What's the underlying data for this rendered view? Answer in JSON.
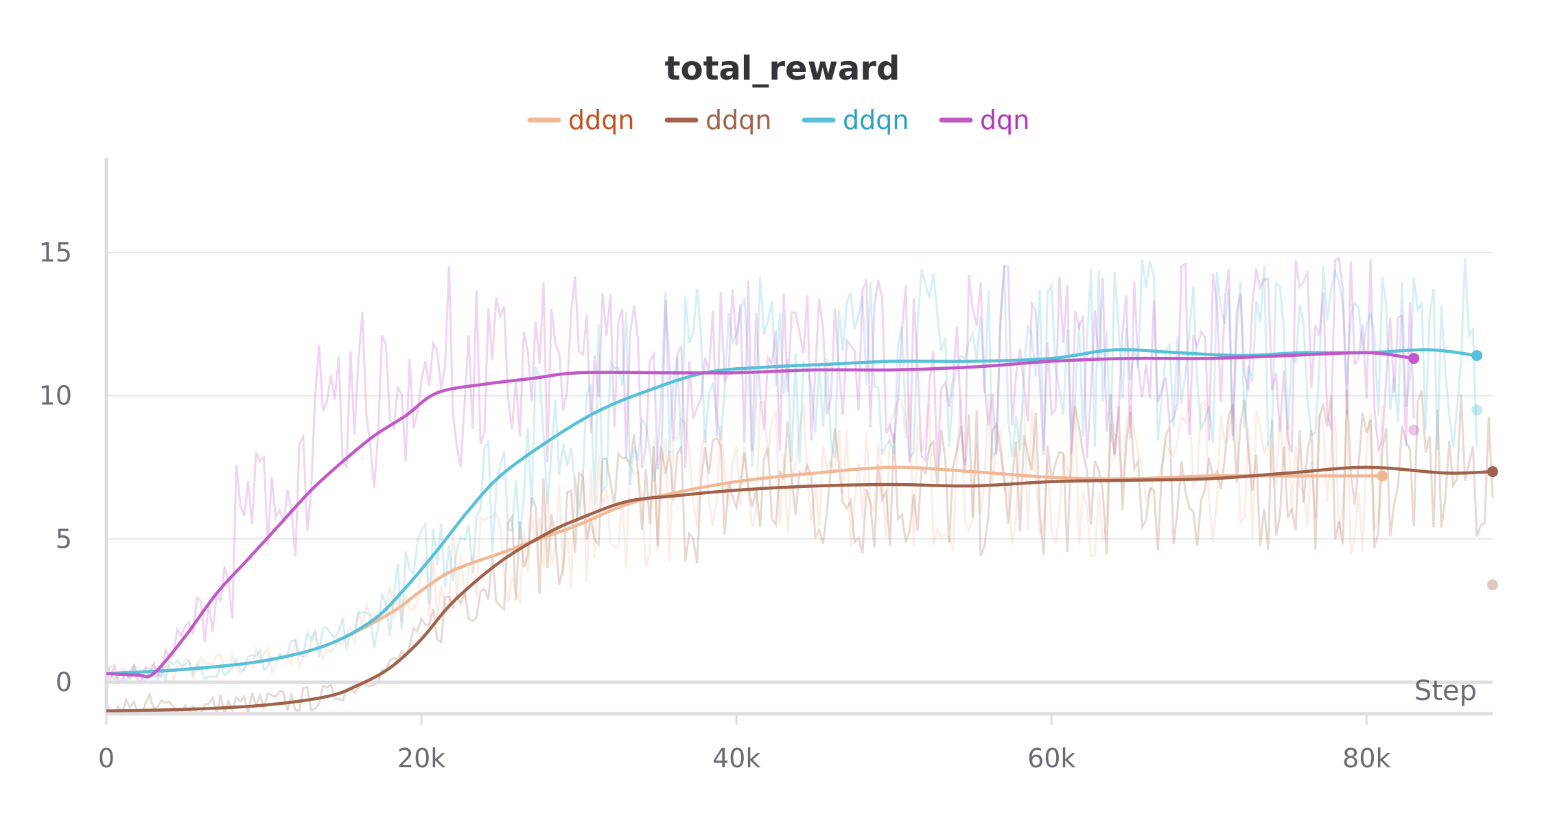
{
  "chart_data": {
    "type": "line",
    "title": "total_reward",
    "xlabel": "Step",
    "ylabel": "",
    "xlim": [
      0,
      88000
    ],
    "ylim": [
      -1.1,
      18.3
    ],
    "x_ticks": [
      {
        "value": 0,
        "label": "0"
      },
      {
        "value": 20000,
        "label": "20k"
      },
      {
        "value": 40000,
        "label": "40k"
      },
      {
        "value": 60000,
        "label": "60k"
      },
      {
        "value": 80000,
        "label": "80k"
      }
    ],
    "y_ticks": [
      {
        "value": 0,
        "label": "0"
      },
      {
        "value": 5,
        "label": "5"
      },
      {
        "value": 10,
        "label": "10"
      },
      {
        "value": 15,
        "label": "15"
      }
    ],
    "grid": true,
    "legend_position": "top-center",
    "series": [
      {
        "name": "ddqn",
        "color": "#f2b896",
        "legend_text_color": "#c0521e",
        "x": [
          0,
          5000,
          10000,
          14000,
          18000,
          20000,
          22000,
          25000,
          28000,
          30000,
          33000,
          36000,
          40000,
          45000,
          50000,
          55000,
          60000,
          65000,
          70000,
          75000,
          81000
        ],
        "y": [
          0.3,
          0.45,
          0.75,
          1.3,
          2.4,
          3.2,
          3.9,
          4.5,
          5.1,
          5.5,
          6.2,
          6.6,
          7.0,
          7.3,
          7.5,
          7.35,
          7.15,
          7.1,
          7.2,
          7.2,
          7.2
        ],
        "end_raw": 7.2
      },
      {
        "name": "ddqn",
        "color": "#a0624a",
        "legend_text_color": "#a0624a",
        "x": [
          0,
          5000,
          10000,
          14000,
          16000,
          18000,
          20000,
          22000,
          25000,
          28000,
          30000,
          33000,
          36000,
          40000,
          45000,
          50000,
          55000,
          60000,
          65000,
          70000,
          75000,
          80000,
          85000,
          88000
        ],
        "y": [
          -1.0,
          -0.95,
          -0.8,
          -0.5,
          -0.1,
          0.5,
          1.5,
          2.8,
          4.2,
          5.2,
          5.7,
          6.3,
          6.5,
          6.7,
          6.85,
          6.9,
          6.85,
          7.0,
          7.05,
          7.1,
          7.3,
          7.5,
          7.3,
          7.35
        ],
        "end_raw": 3.4
      },
      {
        "name": "ddqn",
        "color": "#56c0d8",
        "legend_text_color": "#27a3c0",
        "x": [
          0,
          5000,
          10000,
          14000,
          17000,
          19000,
          21000,
          23000,
          25000,
          28000,
          31000,
          34000,
          38000,
          42000,
          46000,
          50000,
          55000,
          60000,
          64000,
          68000,
          72000,
          76000,
          80000,
          84000,
          87000
        ],
        "y": [
          0.3,
          0.45,
          0.75,
          1.3,
          2.2,
          3.3,
          4.6,
          6.0,
          7.2,
          8.4,
          9.4,
          10.1,
          10.8,
          11.0,
          11.1,
          11.2,
          11.2,
          11.3,
          11.6,
          11.5,
          11.4,
          11.5,
          11.5,
          11.6,
          11.4
        ],
        "end_raw": 9.5
      },
      {
        "name": "dqn",
        "color": "#c058c8",
        "legend_text_color": "#b236bd",
        "x": [
          0,
          2000,
          3000,
          5000,
          7000,
          9000,
          11000,
          13000,
          15000,
          17000,
          19000,
          21000,
          24000,
          27000,
          30000,
          35000,
          40000,
          45000,
          50000,
          55000,
          60000,
          65000,
          70000,
          75000,
          80000,
          83000
        ],
        "y": [
          0.3,
          0.25,
          0.3,
          1.6,
          3.1,
          4.3,
          5.5,
          6.7,
          7.7,
          8.6,
          9.3,
          10.1,
          10.4,
          10.6,
          10.8,
          10.8,
          10.8,
          10.9,
          10.9,
          11.0,
          11.2,
          11.3,
          11.3,
          11.4,
          11.5,
          11.3
        ],
        "end_raw": 8.8
      }
    ]
  }
}
